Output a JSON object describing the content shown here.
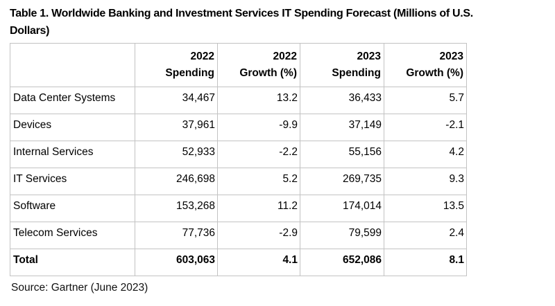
{
  "header": {
    "title_line1": "Table 1. Worldwide Banking and Investment Services IT Spending Forecast (Millions of U.S.",
    "title_line2": "Dollars)"
  },
  "table": {
    "columns": [
      "",
      "2022\nSpending",
      "2022\nGrowth (%)",
      "2023\nSpending",
      "2023\nGrowth (%)"
    ],
    "rows": [
      {
        "label": "Data Center Systems",
        "values": [
          "34,467",
          "13.2",
          "36,433",
          "5.7"
        ],
        "bold": false
      },
      {
        "label": "Devices",
        "values": [
          "37,961",
          "-9.9",
          "37,149",
          "-2.1"
        ],
        "bold": false
      },
      {
        "label": "Internal Services",
        "values": [
          "52,933",
          "-2.2",
          "55,156",
          "4.2"
        ],
        "bold": false
      },
      {
        "label": "IT Services",
        "values": [
          "246,698",
          "5.2",
          "269,735",
          "9.3"
        ],
        "bold": false
      },
      {
        "label": "Software",
        "values": [
          "153,268",
          "11.2",
          "174,014",
          "13.5"
        ],
        "bold": false
      },
      {
        "label": "Telecom Services",
        "values": [
          "77,736",
          "-2.9",
          "79,599",
          "2.4"
        ],
        "bold": false
      },
      {
        "label": "Total",
        "values": [
          "603,063",
          "4.1",
          "652,086",
          "8.1"
        ],
        "bold": true
      }
    ]
  },
  "footer": {
    "source": "Source: Gartner (June 2023)"
  },
  "colors": {
    "text": "#000000",
    "border": "#c2c2c2",
    "background": "#ffffff"
  },
  "chart_data": {
    "type": "table",
    "title": "Table 1. Worldwide Banking and Investment Services IT Spending Forecast (Millions of U.S. Dollars)",
    "columns": [
      "2022 Spending",
      "2022 Growth (%)",
      "2023 Spending",
      "2023 Growth (%)"
    ],
    "row_labels": [
      "Data Center Systems",
      "Devices",
      "Internal Services",
      "IT Services",
      "Software",
      "Telecom Services",
      "Total"
    ],
    "rows": [
      [
        34467,
        13.2,
        36433,
        5.7
      ],
      [
        37961,
        -9.9,
        37149,
        -2.1
      ],
      [
        52933,
        -2.2,
        55156,
        4.2
      ],
      [
        246698,
        5.2,
        269735,
        9.3
      ],
      [
        153268,
        11.2,
        174014,
        13.5
      ],
      [
        77736,
        -2.9,
        79599,
        2.4
      ],
      [
        603063,
        4.1,
        652086,
        8.1
      ]
    ],
    "source": "Source: Gartner (June 2023)",
    "units": "Millions of U.S. Dollars"
  }
}
